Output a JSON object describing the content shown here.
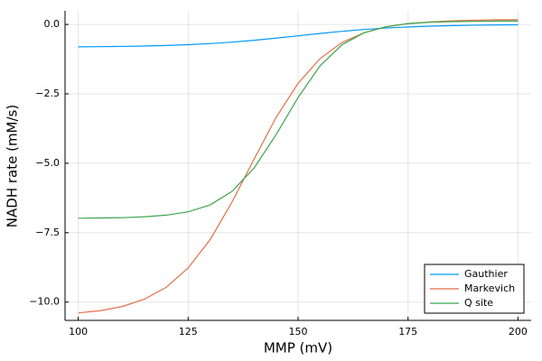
{
  "chart_data": {
    "type": "line",
    "x_label": "MMP (mV)",
    "y_label": "NADH rate (mM/s)",
    "x": [
      100,
      105,
      110,
      115,
      120,
      125,
      130,
      135,
      140,
      145,
      150,
      155,
      160,
      165,
      170,
      175,
      180,
      185,
      190,
      195,
      200
    ],
    "series": [
      {
        "name": "Gauthier",
        "color": "#009afa",
        "values": [
          -0.807,
          -0.801,
          -0.792,
          -0.778,
          -0.758,
          -0.729,
          -0.69,
          -0.637,
          -0.571,
          -0.494,
          -0.41,
          -0.326,
          -0.248,
          -0.183,
          -0.13,
          -0.091,
          -0.062,
          -0.042,
          -0.028,
          -0.019,
          -0.013
        ]
      },
      {
        "name": "Markevich",
        "color": "#e36f47",
        "values": [
          -10.39,
          -10.31,
          -10.16,
          -9.9,
          -9.47,
          -8.77,
          -7.75,
          -6.39,
          -4.85,
          -3.35,
          -2.12,
          -1.23,
          -0.65,
          -0.3,
          -0.09,
          0.03,
          0.09,
          0.13,
          0.15,
          0.17,
          0.17
        ]
      },
      {
        "name": "Q site",
        "color": "#3ea44e",
        "values": [
          -6.98,
          -6.97,
          -6.96,
          -6.93,
          -6.87,
          -6.75,
          -6.5,
          -6.01,
          -5.17,
          -3.97,
          -2.63,
          -1.49,
          -0.73,
          -0.3,
          -0.08,
          0.03,
          0.08,
          0.1,
          0.11,
          0.12,
          0.12
        ]
      }
    ],
    "xlim": [
      97,
      203
    ],
    "ylim": [
      -10.66,
      0.49
    ],
    "xticks": [
      100,
      125,
      150,
      175,
      200
    ],
    "yticks": [
      {
        "value": 0,
        "label": "0.0"
      },
      {
        "value": -2.5,
        "label": "−2.5"
      },
      {
        "value": -5,
        "label": "−5.0"
      },
      {
        "value": -7.5,
        "label": "−7.5"
      },
      {
        "value": -10,
        "label": "−10.0"
      }
    ],
    "grid": true,
    "legend": "lower right"
  }
}
